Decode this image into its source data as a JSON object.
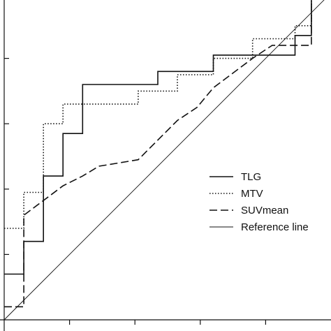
{
  "chart_data": {
    "type": "line",
    "title": "",
    "xlabel": "",
    "ylabel": "",
    "xlim": [
      0.0,
      1.0
    ],
    "ylim": [
      0.0,
      1.0
    ],
    "grid": false,
    "legend": "center-right",
    "series": [
      {
        "name": "TLG",
        "style": "solid",
        "points": [
          [
            0.0,
            0.14
          ],
          [
            0.06,
            0.14
          ],
          [
            0.06,
            0.24
          ],
          [
            0.12,
            0.24
          ],
          [
            0.12,
            0.44
          ],
          [
            0.18,
            0.44
          ],
          [
            0.18,
            0.57
          ],
          [
            0.24,
            0.57
          ],
          [
            0.24,
            0.72
          ],
          [
            0.47,
            0.72
          ],
          [
            0.47,
            0.76
          ],
          [
            0.64,
            0.76
          ],
          [
            0.64,
            0.81
          ],
          [
            0.89,
            0.81
          ],
          [
            0.89,
            0.87
          ],
          [
            0.94,
            0.87
          ],
          [
            0.94,
            1.0
          ],
          [
            1.0,
            1.0
          ]
        ]
      },
      {
        "name": "MTV",
        "style": "dotted",
        "points": [
          [
            0.0,
            0.28
          ],
          [
            0.06,
            0.28
          ],
          [
            0.06,
            0.39
          ],
          [
            0.12,
            0.39
          ],
          [
            0.12,
            0.6
          ],
          [
            0.18,
            0.6
          ],
          [
            0.18,
            0.66
          ],
          [
            0.41,
            0.66
          ],
          [
            0.41,
            0.7
          ],
          [
            0.53,
            0.7
          ],
          [
            0.53,
            0.75
          ],
          [
            0.64,
            0.75
          ],
          [
            0.64,
            0.8
          ],
          [
            0.76,
            0.8
          ],
          [
            0.76,
            0.86
          ],
          [
            0.89,
            0.86
          ],
          [
            0.89,
            0.9
          ],
          [
            0.94,
            0.9
          ],
          [
            0.94,
            1.0
          ],
          [
            1.0,
            1.0
          ]
        ]
      },
      {
        "name": "SUVmean",
        "style": "dashed",
        "points": [
          [
            0.0,
            0.04
          ],
          [
            0.06,
            0.04
          ],
          [
            0.06,
            0.32
          ],
          [
            0.1,
            0.35
          ],
          [
            0.14,
            0.38
          ],
          [
            0.18,
            0.41
          ],
          [
            0.24,
            0.44
          ],
          [
            0.29,
            0.47
          ],
          [
            0.35,
            0.48
          ],
          [
            0.41,
            0.49
          ],
          [
            0.47,
            0.55
          ],
          [
            0.53,
            0.61
          ],
          [
            0.59,
            0.65
          ],
          [
            0.64,
            0.71
          ],
          [
            0.76,
            0.8
          ],
          [
            0.82,
            0.84
          ],
          [
            0.94,
            0.84
          ],
          [
            0.94,
            1.0
          ],
          [
            1.0,
            1.0
          ]
        ]
      },
      {
        "name": "Reference line",
        "style": "thin",
        "points": [
          [
            0.0,
            0.0
          ],
          [
            1.0,
            1.0
          ]
        ]
      }
    ]
  }
}
